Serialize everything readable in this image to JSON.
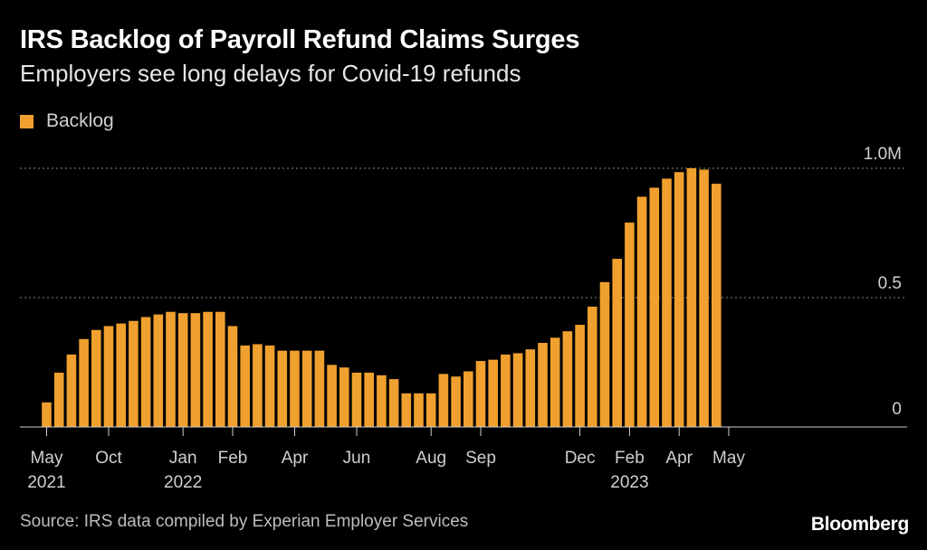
{
  "title": "IRS Backlog of Payroll Refund Claims Surges",
  "subtitle": "Employers see long delays for Covid-19 refunds",
  "source": "Source: IRS data compiled by Experian Employer Services",
  "brand": "Bloomberg",
  "colors": {
    "bar": "#F0A02E",
    "background": "#000000",
    "grid": "#8a8a8a",
    "axis_text": "#cfcfcf"
  },
  "chart_data": {
    "type": "bar",
    "series": [
      {
        "name": "Backlog",
        "values": [
          0.095,
          0.21,
          0.28,
          0.34,
          0.375,
          0.39,
          0.4,
          0.41,
          0.425,
          0.435,
          0.445,
          0.44,
          0.44,
          0.445,
          0.445,
          0.39,
          0.315,
          0.32,
          0.315,
          0.295,
          0.295,
          0.295,
          0.295,
          0.24,
          0.23,
          0.21,
          0.21,
          0.2,
          0.185,
          0.13,
          0.13,
          0.13,
          0.205,
          0.195,
          0.215,
          0.255,
          0.26,
          0.28,
          0.285,
          0.3,
          0.325,
          0.345,
          0.37,
          0.395,
          0.465,
          0.56,
          0.65,
          0.79,
          0.89,
          0.925,
          0.96,
          0.985,
          1.0,
          0.995,
          0.94
        ]
      }
    ],
    "x_ticks": [
      {
        "index": 0,
        "label": "May",
        "year": "2021"
      },
      {
        "index": 5,
        "label": "Oct"
      },
      {
        "index": 11,
        "label": "Jan",
        "year": "2022"
      },
      {
        "index": 15,
        "label": "Feb"
      },
      {
        "index": 20,
        "label": "Apr"
      },
      {
        "index": 25,
        "label": "Jun"
      },
      {
        "index": 31,
        "label": "Aug"
      },
      {
        "index": 35,
        "label": "Sep"
      },
      {
        "index": 43,
        "label": "Dec"
      },
      {
        "index": 47,
        "label": "Feb",
        "year": "2023"
      },
      {
        "index": 51,
        "label": "Apr"
      },
      {
        "index": 55,
        "label": "May"
      }
    ],
    "y_ticks": [
      {
        "value": 0,
        "label": "0"
      },
      {
        "value": 0.5,
        "label": "0.5"
      },
      {
        "value": 1.0,
        "label": "1.0M"
      }
    ],
    "ylim": [
      0,
      1.0
    ],
    "grid": true,
    "legend": "top-left"
  }
}
